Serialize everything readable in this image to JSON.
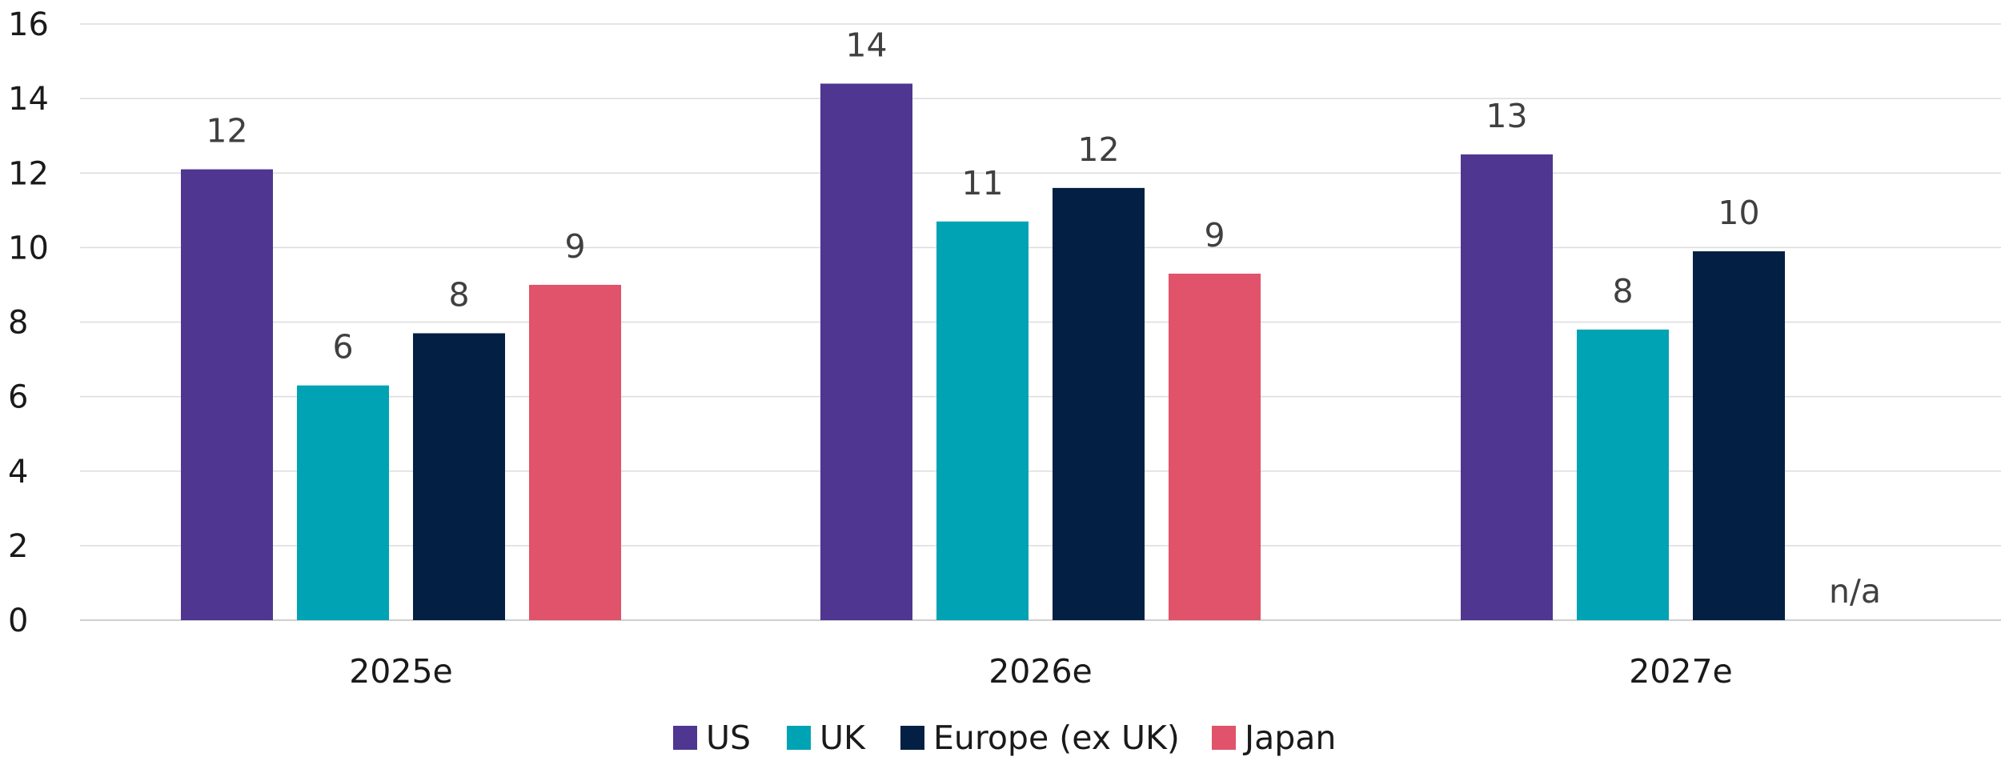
{
  "chart_data": {
    "type": "bar",
    "title": "",
    "xlabel": "",
    "ylabel": "",
    "categories": [
      "2025e",
      "2026e",
      "2027e"
    ],
    "ylim": [
      0,
      16
    ],
    "yticks": [
      0,
      2,
      4,
      6,
      8,
      10,
      12,
      14,
      16
    ],
    "grid": true,
    "legend_position": "bottom",
    "series": [
      {
        "name": "US",
        "color": "#4e3691",
        "values": [
          12.1,
          14.4,
          12.5
        ],
        "labels": [
          "12",
          "14",
          "13"
        ]
      },
      {
        "name": "UK",
        "color": "#00a3b4",
        "values": [
          6.3,
          10.7,
          7.8
        ],
        "labels": [
          "6",
          "11",
          "8"
        ]
      },
      {
        "name": "Europe (ex UK)",
        "color": "#031f44",
        "values": [
          7.7,
          11.6,
          9.9
        ],
        "labels": [
          "8",
          "12",
          "10"
        ]
      },
      {
        "name": "Japan",
        "color": "#e0536a",
        "values": [
          9.0,
          9.3,
          null
        ],
        "labels": [
          "9",
          "9",
          "n/a"
        ]
      }
    ]
  }
}
